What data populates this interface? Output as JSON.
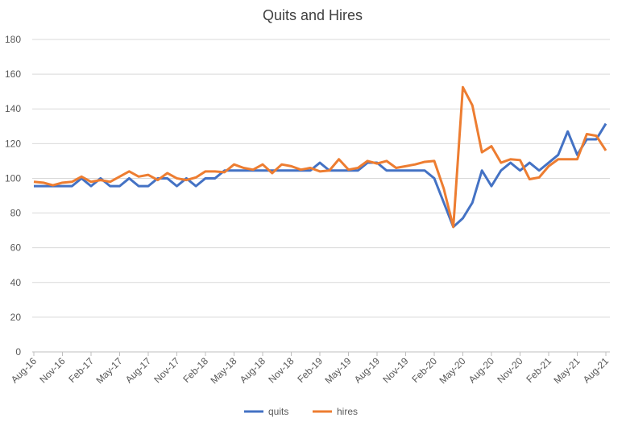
{
  "chart_data": {
    "type": "line",
    "title": "Quits and Hires",
    "categories": [
      "Aug-16",
      null,
      null,
      "Nov-16",
      null,
      null,
      "Feb-17",
      null,
      null,
      "May-17",
      null,
      null,
      "Aug-17",
      null,
      null,
      "Nov-17",
      null,
      null,
      "Feb-18",
      null,
      null,
      "May-18",
      null,
      null,
      "Aug-18",
      null,
      null,
      "Nov-18",
      null,
      null,
      "Feb-19",
      null,
      null,
      "May-19",
      null,
      null,
      "Aug-19",
      null,
      null,
      "Nov-19",
      null,
      null,
      "Feb-20",
      null,
      null,
      "May-20",
      null,
      null,
      "Aug-20",
      null,
      null,
      "Nov-20",
      null,
      null,
      "Feb-21",
      null,
      null,
      "May-21",
      null,
      null,
      "Aug-21"
    ],
    "series": [
      {
        "name": "quits",
        "color": "#4472c4",
        "values": [
          95.5,
          95.5,
          95.5,
          95.5,
          95.5,
          100,
          95.5,
          100,
          95.5,
          95.5,
          100,
          95.5,
          95.5,
          100,
          100,
          95.5,
          100,
          95.5,
          100,
          100,
          104.5,
          104.5,
          104.5,
          104.5,
          104.5,
          104.5,
          104.5,
          104.5,
          104.5,
          104.5,
          109,
          104.5,
          104.5,
          104.5,
          104.5,
          109,
          109,
          104.5,
          104.5,
          104.5,
          104.5,
          104.5,
          100,
          86,
          72,
          77,
          86,
          104.5,
          95.5,
          104.5,
          109,
          104.5,
          109,
          104.5,
          109,
          113.5,
          127,
          113.5,
          122.5,
          122.5,
          131.5
        ]
      },
      {
        "name": "hires",
        "color": "#ed7d31",
        "values": [
          98,
          97.5,
          96,
          97.5,
          98,
          101,
          98,
          99,
          98,
          101,
          104,
          101,
          102,
          99,
          103,
          100,
          99,
          100.5,
          104,
          104,
          103.5,
          108,
          106,
          105,
          108,
          103,
          108,
          107,
          105,
          106,
          104,
          104.5,
          111,
          105,
          106,
          110,
          108.5,
          110,
          106,
          107,
          108,
          109.5,
          110,
          94,
          72,
          152.5,
          142,
          115,
          118.5,
          109,
          111,
          110.5,
          99.5,
          100.5,
          107,
          111,
          111,
          111,
          125.5,
          124.5,
          116
        ]
      }
    ],
    "ylim": [
      0,
      180
    ],
    "yticks": [
      0,
      20,
      40,
      60,
      80,
      100,
      120,
      140,
      160,
      180
    ],
    "grid": true,
    "legend": "bottom"
  }
}
